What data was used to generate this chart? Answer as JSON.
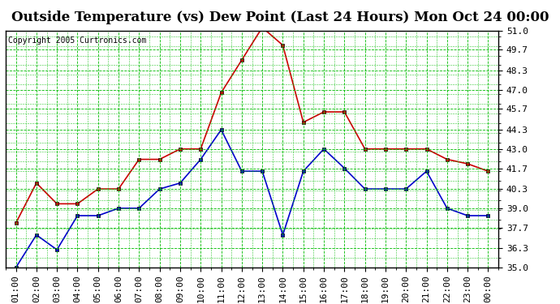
{
  "title": "Outside Temperature (vs) Dew Point (Last 24 Hours) Mon Oct 24 00:00",
  "copyright": "Copyright 2005 Curtronics.com",
  "x_labels": [
    "01:00",
    "02:00",
    "03:00",
    "04:00",
    "05:00",
    "06:00",
    "07:00",
    "08:00",
    "09:00",
    "10:00",
    "11:00",
    "12:00",
    "13:00",
    "14:00",
    "15:00",
    "16:00",
    "17:00",
    "18:00",
    "19:00",
    "20:00",
    "21:00",
    "22:00",
    "23:00",
    "00:00"
  ],
  "y_ticks": [
    35.0,
    36.3,
    37.7,
    39.0,
    40.3,
    41.7,
    43.0,
    44.3,
    45.7,
    47.0,
    48.3,
    49.7,
    51.0
  ],
  "ylim": [
    35.0,
    51.0
  ],
  "red_data": [
    38.0,
    40.7,
    39.3,
    39.3,
    40.3,
    40.3,
    42.3,
    42.3,
    43.0,
    43.0,
    46.8,
    49.0,
    51.2,
    50.0,
    44.8,
    45.5,
    45.5,
    43.0,
    43.0,
    43.0,
    43.0,
    42.3,
    42.0,
    41.5
  ],
  "blue_data": [
    35.0,
    37.2,
    36.2,
    38.5,
    38.5,
    39.0,
    39.0,
    40.3,
    40.7,
    42.3,
    44.3,
    41.5,
    41.5,
    37.2,
    41.5,
    43.0,
    41.7,
    40.3,
    40.3,
    40.3,
    41.5,
    39.0,
    38.5,
    38.5
  ],
  "red_color": "#cc0000",
  "blue_color": "#0000cc",
  "bg_color": "#ffffff",
  "plot_bg_color": "#ffffff",
  "grid_color": "#00bb00",
  "title_fontsize": 12,
  "copyright_fontsize": 7,
  "tick_fontsize": 8,
  "marker": "s",
  "marker_size": 3.5,
  "line_width": 1.2
}
